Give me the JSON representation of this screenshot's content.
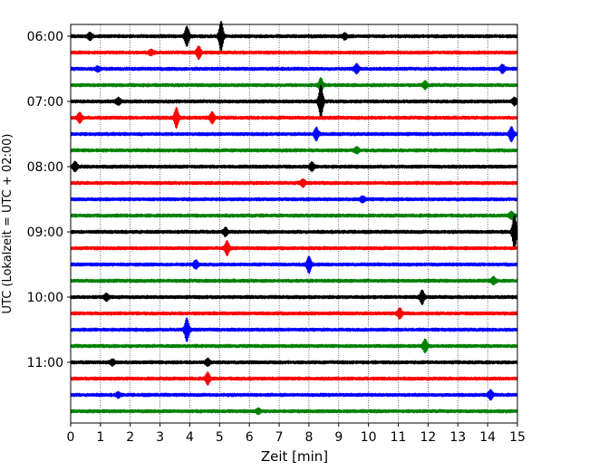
{
  "chart_data": {
    "type": "line",
    "xlabel": "Zeit  [min]",
    "ylabel": "UTC (Lokalzeit = UTC + 02:00)",
    "xlim": [
      0,
      15
    ],
    "x_ticks": [
      0,
      1,
      2,
      3,
      4,
      5,
      6,
      7,
      8,
      9,
      10,
      11,
      12,
      13,
      14,
      15
    ],
    "x_grid": "dotted",
    "y_tick_labels": [
      "06:00",
      "07:00",
      "08:00",
      "09:00",
      "10:00",
      "11:00"
    ],
    "trace_interval_min": 15,
    "trace_colors": [
      "#000000",
      "#ff0000",
      "#0000ff",
      "#008000"
    ],
    "traces": [
      {
        "start": "06:00",
        "color": "#000000",
        "events": [
          {
            "t": 3.9,
            "amp": 0.9
          },
          {
            "t": 5.05,
            "amp": 1.4
          },
          {
            "t": 0.65,
            "amp": 0.3
          },
          {
            "t": 9.2,
            "amp": 0.25
          }
        ]
      },
      {
        "start": "06:15",
        "color": "#ff0000",
        "events": [
          {
            "t": 4.3,
            "amp": 0.55
          },
          {
            "t": 2.7,
            "amp": 0.2
          }
        ]
      },
      {
        "start": "06:30",
        "color": "#0000ff",
        "events": [
          {
            "t": 9.6,
            "amp": 0.4
          },
          {
            "t": 14.5,
            "amp": 0.35
          },
          {
            "t": 0.9,
            "amp": 0.2
          }
        ]
      },
      {
        "start": "06:45",
        "color": "#008000",
        "events": [
          {
            "t": 8.4,
            "amp": 0.6
          },
          {
            "t": 11.9,
            "amp": 0.3
          }
        ]
      },
      {
        "start": "07:00",
        "color": "#000000",
        "events": [
          {
            "t": 8.4,
            "amp": 1.5
          },
          {
            "t": 1.6,
            "amp": 0.3
          },
          {
            "t": 14.9,
            "amp": 0.3
          }
        ]
      },
      {
        "start": "07:15",
        "color": "#ff0000",
        "events": [
          {
            "t": 0.3,
            "amp": 0.45
          },
          {
            "t": 3.55,
            "amp": 0.9
          },
          {
            "t": 4.75,
            "amp": 0.5
          }
        ]
      },
      {
        "start": "07:30",
        "color": "#0000ff",
        "events": [
          {
            "t": 8.25,
            "amp": 0.55
          },
          {
            "t": 14.8,
            "amp": 0.65
          }
        ]
      },
      {
        "start": "07:45",
        "color": "#008000",
        "events": [
          {
            "t": 9.6,
            "amp": 0.25
          }
        ]
      },
      {
        "start": "08:00",
        "color": "#000000",
        "events": [
          {
            "t": 0.15,
            "amp": 0.4
          },
          {
            "t": 8.1,
            "amp": 0.35
          }
        ]
      },
      {
        "start": "08:15",
        "color": "#ff0000",
        "events": [
          {
            "t": 7.8,
            "amp": 0.3
          }
        ]
      },
      {
        "start": "08:30",
        "color": "#0000ff",
        "events": [
          {
            "t": 9.8,
            "amp": 0.25
          }
        ]
      },
      {
        "start": "08:45",
        "color": "#008000",
        "events": [
          {
            "t": 14.8,
            "amp": 0.3
          }
        ]
      },
      {
        "start": "09:00",
        "color": "#000000",
        "events": [
          {
            "t": 14.9,
            "amp": 1.6
          },
          {
            "t": 5.2,
            "amp": 0.35
          }
        ]
      },
      {
        "start": "09:15",
        "color": "#ff0000",
        "events": [
          {
            "t": 5.25,
            "amp": 0.65
          }
        ]
      },
      {
        "start": "09:30",
        "color": "#0000ff",
        "events": [
          {
            "t": 8.0,
            "amp": 0.75
          },
          {
            "t": 4.2,
            "amp": 0.35
          }
        ]
      },
      {
        "start": "09:45",
        "color": "#008000",
        "events": [
          {
            "t": 14.2,
            "amp": 0.3
          }
        ]
      },
      {
        "start": "10:00",
        "color": "#000000",
        "events": [
          {
            "t": 11.8,
            "amp": 0.6
          },
          {
            "t": 1.2,
            "amp": 0.3
          }
        ]
      },
      {
        "start": "10:15",
        "color": "#ff0000",
        "events": [
          {
            "t": 11.05,
            "amp": 0.45
          }
        ]
      },
      {
        "start": "10:30",
        "color": "#0000ff",
        "events": [
          {
            "t": 3.9,
            "amp": 1.1
          }
        ]
      },
      {
        "start": "10:45",
        "color": "#008000",
        "events": [
          {
            "t": 11.9,
            "amp": 0.6
          }
        ]
      },
      {
        "start": "11:00",
        "color": "#000000",
        "events": [
          {
            "t": 1.4,
            "amp": 0.25
          },
          {
            "t": 4.6,
            "amp": 0.3
          }
        ]
      },
      {
        "start": "11:15",
        "color": "#ff0000",
        "events": [
          {
            "t": 4.6,
            "amp": 0.5
          }
        ]
      },
      {
        "start": "11:30",
        "color": "#0000ff",
        "events": [
          {
            "t": 14.1,
            "amp": 0.4
          },
          {
            "t": 1.6,
            "amp": 0.2
          }
        ]
      },
      {
        "start": "11:45",
        "color": "#008000",
        "events": [
          {
            "t": 6.3,
            "amp": 0.2
          }
        ]
      }
    ]
  }
}
